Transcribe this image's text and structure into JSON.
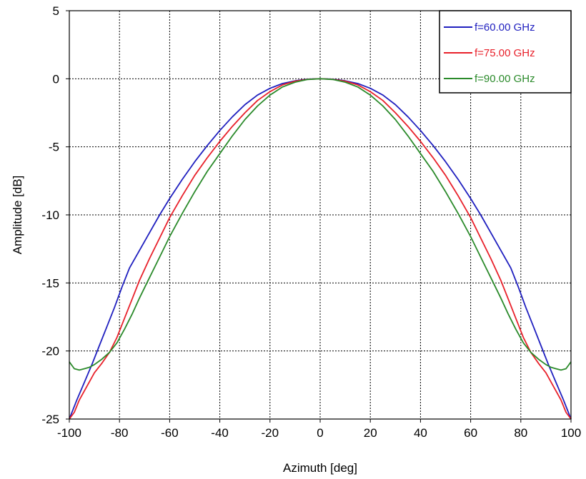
{
  "chart_data": {
    "type": "line",
    "title": "",
    "xlabel": "Azimuth [deg]",
    "ylabel": "Amplitude [dB]",
    "xlim": [
      -100,
      100
    ],
    "ylim": [
      -25,
      5
    ],
    "xticks": [
      -100,
      -80,
      -60,
      -40,
      -20,
      0,
      20,
      40,
      60,
      80,
      100
    ],
    "yticks": [
      5,
      0,
      -5,
      -10,
      -15,
      -20,
      -25
    ],
    "grid": true,
    "legend_position": "top-right",
    "series": [
      {
        "name": "f=60.00 GHz",
        "color": "#1f1fbf",
        "points": [
          [
            -100,
            -25.0
          ],
          [
            -97,
            -23.6
          ],
          [
            -94,
            -22.3
          ],
          [
            -91,
            -21.0
          ],
          [
            -88,
            -19.6
          ],
          [
            -85,
            -18.2
          ],
          [
            -82,
            -16.8
          ],
          [
            -79,
            -15.3
          ],
          [
            -76,
            -13.9
          ],
          [
            -72,
            -12.6
          ],
          [
            -68,
            -11.3
          ],
          [
            -64,
            -10.0
          ],
          [
            -60,
            -8.8
          ],
          [
            -55,
            -7.4
          ],
          [
            -50,
            -6.1
          ],
          [
            -45,
            -4.9
          ],
          [
            -40,
            -3.8
          ],
          [
            -35,
            -2.8
          ],
          [
            -30,
            -1.9
          ],
          [
            -25,
            -1.2
          ],
          [
            -20,
            -0.7
          ],
          [
            -15,
            -0.35
          ],
          [
            -10,
            -0.15
          ],
          [
            -5,
            -0.03
          ],
          [
            0,
            0.0
          ],
          [
            5,
            -0.03
          ],
          [
            10,
            -0.15
          ],
          [
            15,
            -0.35
          ],
          [
            20,
            -0.7
          ],
          [
            25,
            -1.2
          ],
          [
            30,
            -1.9
          ],
          [
            35,
            -2.8
          ],
          [
            40,
            -3.8
          ],
          [
            45,
            -4.9
          ],
          [
            50,
            -6.1
          ],
          [
            55,
            -7.4
          ],
          [
            60,
            -8.8
          ],
          [
            64,
            -10.0
          ],
          [
            68,
            -11.3
          ],
          [
            72,
            -12.6
          ],
          [
            76,
            -13.9
          ],
          [
            79,
            -15.3
          ],
          [
            82,
            -16.8
          ],
          [
            85,
            -18.2
          ],
          [
            88,
            -19.6
          ],
          [
            91,
            -21.0
          ],
          [
            94,
            -22.3
          ],
          [
            97,
            -23.6
          ],
          [
            100,
            -25.0
          ]
        ]
      },
      {
        "name": "f=75.00 GHz",
        "color": "#e8202a",
        "points": [
          [
            -100,
            -25.0
          ],
          [
            -98,
            -24.5
          ],
          [
            -96,
            -23.6
          ],
          [
            -93,
            -22.6
          ],
          [
            -90,
            -21.6
          ],
          [
            -87,
            -20.9
          ],
          [
            -84,
            -20.1
          ],
          [
            -81,
            -19.0
          ],
          [
            -78,
            -17.6
          ],
          [
            -75,
            -16.2
          ],
          [
            -72,
            -14.8
          ],
          [
            -68,
            -13.2
          ],
          [
            -64,
            -11.7
          ],
          [
            -60,
            -10.2
          ],
          [
            -55,
            -8.6
          ],
          [
            -50,
            -7.1
          ],
          [
            -45,
            -5.8
          ],
          [
            -40,
            -4.6
          ],
          [
            -35,
            -3.5
          ],
          [
            -30,
            -2.5
          ],
          [
            -25,
            -1.6
          ],
          [
            -20,
            -0.95
          ],
          [
            -15,
            -0.45
          ],
          [
            -10,
            -0.18
          ],
          [
            -5,
            -0.04
          ],
          [
            0,
            0.0
          ],
          [
            5,
            -0.04
          ],
          [
            10,
            -0.18
          ],
          [
            15,
            -0.45
          ],
          [
            20,
            -0.95
          ],
          [
            25,
            -1.6
          ],
          [
            30,
            -2.5
          ],
          [
            35,
            -3.5
          ],
          [
            40,
            -4.6
          ],
          [
            45,
            -5.8
          ],
          [
            50,
            -7.1
          ],
          [
            55,
            -8.6
          ],
          [
            60,
            -10.2
          ],
          [
            64,
            -11.7
          ],
          [
            68,
            -13.2
          ],
          [
            72,
            -14.8
          ],
          [
            75,
            -16.2
          ],
          [
            78,
            -17.6
          ],
          [
            81,
            -19.0
          ],
          [
            84,
            -20.1
          ],
          [
            87,
            -20.9
          ],
          [
            90,
            -21.6
          ],
          [
            93,
            -22.6
          ],
          [
            96,
            -23.6
          ],
          [
            98,
            -24.5
          ],
          [
            100,
            -25.0
          ]
        ]
      },
      {
        "name": "f=90.00 GHz",
        "color": "#2a8a2a",
        "points": [
          [
            -100,
            -20.8
          ],
          [
            -98,
            -21.3
          ],
          [
            -96,
            -21.4
          ],
          [
            -94,
            -21.3
          ],
          [
            -92,
            -21.2
          ],
          [
            -90,
            -21.0
          ],
          [
            -87,
            -20.6
          ],
          [
            -84,
            -20.1
          ],
          [
            -81,
            -19.4
          ],
          [
            -78,
            -18.4
          ],
          [
            -75,
            -17.3
          ],
          [
            -72,
            -16.1
          ],
          [
            -68,
            -14.6
          ],
          [
            -64,
            -13.1
          ],
          [
            -60,
            -11.6
          ],
          [
            -55,
            -9.9
          ],
          [
            -50,
            -8.3
          ],
          [
            -45,
            -6.8
          ],
          [
            -40,
            -5.5
          ],
          [
            -35,
            -4.2
          ],
          [
            -30,
            -3.0
          ],
          [
            -25,
            -2.0
          ],
          [
            -20,
            -1.2
          ],
          [
            -15,
            -0.6
          ],
          [
            -10,
            -0.25
          ],
          [
            -5,
            -0.05
          ],
          [
            0,
            0.0
          ],
          [
            5,
            -0.05
          ],
          [
            10,
            -0.25
          ],
          [
            15,
            -0.6
          ],
          [
            20,
            -1.2
          ],
          [
            25,
            -2.0
          ],
          [
            30,
            -3.0
          ],
          [
            35,
            -4.2
          ],
          [
            40,
            -5.5
          ],
          [
            45,
            -6.8
          ],
          [
            50,
            -8.3
          ],
          [
            55,
            -9.9
          ],
          [
            60,
            -11.6
          ],
          [
            64,
            -13.1
          ],
          [
            68,
            -14.6
          ],
          [
            72,
            -16.1
          ],
          [
            75,
            -17.3
          ],
          [
            78,
            -18.4
          ],
          [
            81,
            -19.4
          ],
          [
            84,
            -20.1
          ],
          [
            87,
            -20.6
          ],
          [
            90,
            -21.0
          ],
          [
            92,
            -21.2
          ],
          [
            94,
            -21.3
          ],
          [
            96,
            -21.4
          ],
          [
            98,
            -21.3
          ],
          [
            100,
            -20.8
          ]
        ]
      }
    ]
  }
}
